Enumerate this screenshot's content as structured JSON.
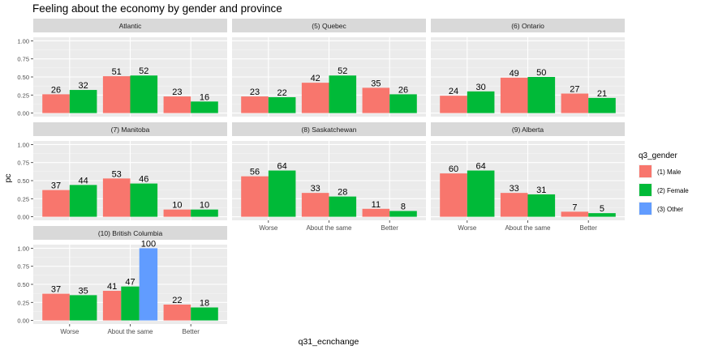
{
  "chart_data": {
    "type": "bar",
    "title": "Feeling about the economy by gender and province",
    "xlabel": "q31_ecnchange",
    "ylabel": "pc",
    "ylim": [
      0,
      1.0
    ],
    "yticks": [
      "0.00",
      "0.25",
      "0.50",
      "0.75",
      "1.00"
    ],
    "categories": [
      "Worse",
      "About the same",
      "Better"
    ],
    "legend": {
      "title": "q3_gender",
      "placement": "right",
      "entries": [
        {
          "name": "(1) Male",
          "color": "#F8766D"
        },
        {
          "name": "(2) Female",
          "color": "#00BA38"
        },
        {
          "name": "(3) Other",
          "color": "#619CFF"
        }
      ]
    },
    "grid": true,
    "panels": [
      {
        "name": "Atlantic",
        "bars": [
          {
            "category": "Worse",
            "series": "(1) Male",
            "value": 0.26,
            "label": "26"
          },
          {
            "category": "Worse",
            "series": "(2) Female",
            "value": 0.32,
            "label": "32"
          },
          {
            "category": "About the same",
            "series": "(1) Male",
            "value": 0.51,
            "label": "51"
          },
          {
            "category": "About the same",
            "series": "(2) Female",
            "value": 0.52,
            "label": "52"
          },
          {
            "category": "Better",
            "series": "(1) Male",
            "value": 0.23,
            "label": "23"
          },
          {
            "category": "Better",
            "series": "(2) Female",
            "value": 0.16,
            "label": "16"
          }
        ]
      },
      {
        "name": "(5) Quebec",
        "bars": [
          {
            "category": "Worse",
            "series": "(1) Male",
            "value": 0.23,
            "label": "23"
          },
          {
            "category": "Worse",
            "series": "(2) Female",
            "value": 0.22,
            "label": "22"
          },
          {
            "category": "About the same",
            "series": "(1) Male",
            "value": 0.42,
            "label": "42"
          },
          {
            "category": "About the same",
            "series": "(2) Female",
            "value": 0.52,
            "label": "52"
          },
          {
            "category": "Better",
            "series": "(1) Male",
            "value": 0.35,
            "label": "35"
          },
          {
            "category": "Better",
            "series": "(2) Female",
            "value": 0.26,
            "label": "26"
          }
        ]
      },
      {
        "name": "(6) Ontario",
        "bars": [
          {
            "category": "Worse",
            "series": "(1) Male",
            "value": 0.24,
            "label": "24"
          },
          {
            "category": "Worse",
            "series": "(2) Female",
            "value": 0.3,
            "label": "30"
          },
          {
            "category": "About the same",
            "series": "(1) Male",
            "value": 0.49,
            "label": "49"
          },
          {
            "category": "About the same",
            "series": "(2) Female",
            "value": 0.5,
            "label": "50"
          },
          {
            "category": "Better",
            "series": "(1) Male",
            "value": 0.27,
            "label": "27"
          },
          {
            "category": "Better",
            "series": "(2) Female",
            "value": 0.21,
            "label": "21"
          }
        ]
      },
      {
        "name": "(7) Manitoba",
        "bars": [
          {
            "category": "Worse",
            "series": "(1) Male",
            "value": 0.37,
            "label": "37"
          },
          {
            "category": "Worse",
            "series": "(2) Female",
            "value": 0.44,
            "label": "44"
          },
          {
            "category": "About the same",
            "series": "(1) Male",
            "value": 0.53,
            "label": "53"
          },
          {
            "category": "About the same",
            "series": "(2) Female",
            "value": 0.46,
            "label": "46"
          },
          {
            "category": "Better",
            "series": "(1) Male",
            "value": 0.1,
            "label": "10"
          },
          {
            "category": "Better",
            "series": "(2) Female",
            "value": 0.1,
            "label": "10"
          }
        ]
      },
      {
        "name": "(8) Saskatchewan",
        "bars": [
          {
            "category": "Worse",
            "series": "(1) Male",
            "value": 0.56,
            "label": "56"
          },
          {
            "category": "Worse",
            "series": "(2) Female",
            "value": 0.64,
            "label": "64"
          },
          {
            "category": "About the same",
            "series": "(1) Male",
            "value": 0.33,
            "label": "33"
          },
          {
            "category": "About the same",
            "series": "(2) Female",
            "value": 0.28,
            "label": "28"
          },
          {
            "category": "Better",
            "series": "(1) Male",
            "value": 0.11,
            "label": "11"
          },
          {
            "category": "Better",
            "series": "(2) Female",
            "value": 0.08,
            "label": "8"
          }
        ]
      },
      {
        "name": "(9) Alberta",
        "bars": [
          {
            "category": "Worse",
            "series": "(1) Male",
            "value": 0.6,
            "label": "60"
          },
          {
            "category": "Worse",
            "series": "(2) Female",
            "value": 0.64,
            "label": "64"
          },
          {
            "category": "About the same",
            "series": "(1) Male",
            "value": 0.33,
            "label": "33"
          },
          {
            "category": "About the same",
            "series": "(2) Female",
            "value": 0.31,
            "label": "31"
          },
          {
            "category": "Better",
            "series": "(1) Male",
            "value": 0.07,
            "label": "7"
          },
          {
            "category": "Better",
            "series": "(2) Female",
            "value": 0.05,
            "label": "5"
          }
        ]
      },
      {
        "name": "(10) British Columbia",
        "bars": [
          {
            "category": "Worse",
            "series": "(1) Male",
            "value": 0.37,
            "label": "37"
          },
          {
            "category": "Worse",
            "series": "(2) Female",
            "value": 0.35,
            "label": "35"
          },
          {
            "category": "About the same",
            "series": "(1) Male",
            "value": 0.41,
            "label": "41"
          },
          {
            "category": "About the same",
            "series": "(2) Female",
            "value": 0.47,
            "label": "47"
          },
          {
            "category": "About the same",
            "series": "(3) Other",
            "value": 1.0,
            "label": "100"
          },
          {
            "category": "Better",
            "series": "(1) Male",
            "value": 0.22,
            "label": "22"
          },
          {
            "category": "Better",
            "series": "(2) Female",
            "value": 0.18,
            "label": "18"
          }
        ]
      }
    ]
  }
}
